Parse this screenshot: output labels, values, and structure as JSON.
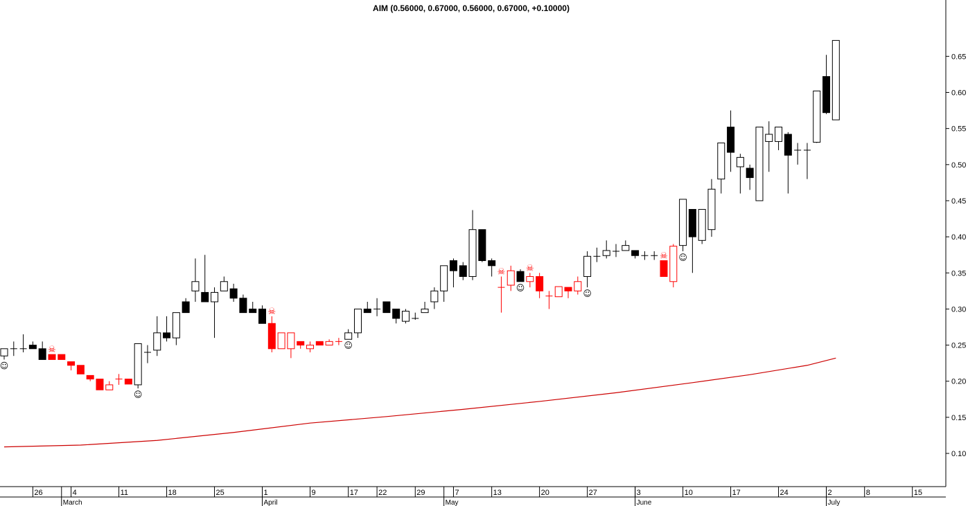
{
  "chart_data": {
    "type": "candlestick",
    "title": "AIM (0.56000, 0.67000, 0.56000, 0.67000, +0.10000)",
    "open": [
      0.235,
      0.245,
      0.245,
      0.25,
      0.245,
      0.237,
      0.237,
      0.227,
      0.222,
      0.208,
      0.203,
      0.188,
      0.203,
      0.203,
      0.195,
      0.24,
      0.243,
      0.267,
      0.26,
      0.31,
      0.325,
      0.323,
      0.31,
      0.325,
      0.328,
      0.315,
      0.3,
      0.3,
      0.28,
      0.245,
      0.245,
      0.255,
      0.245,
      0.255,
      0.25,
      0.255,
      0.258,
      0.267,
      0.3,
      0.3,
      0.31,
      0.3,
      0.283,
      0.287,
      0.295,
      0.31,
      0.325,
      0.367,
      0.36,
      0.345,
      0.41,
      0.367,
      0.33,
      0.333,
      0.352,
      0.338,
      0.345,
      0.318,
      0.317,
      0.33,
      0.325,
      0.345,
      0.373,
      0.374,
      0.38,
      0.381,
      0.381,
      0.374,
      0.374,
      0.367,
      0.338,
      0.388,
      0.438,
      0.395,
      0.41,
      0.48,
      0.552,
      0.497,
      0.495,
      0.45,
      0.532,
      0.532,
      0.542,
      0.52,
      0.52,
      0.531,
      0.622,
      0.562
    ],
    "high": [
      0.245,
      0.255,
      0.265,
      0.255,
      0.255,
      0.237,
      0.237,
      0.227,
      0.222,
      0.208,
      0.203,
      0.2,
      0.21,
      0.203,
      0.252,
      0.25,
      0.29,
      0.29,
      0.295,
      0.315,
      0.37,
      0.375,
      0.33,
      0.345,
      0.335,
      0.32,
      0.31,
      0.305,
      0.29,
      0.267,
      0.267,
      0.255,
      0.255,
      0.255,
      0.258,
      0.26,
      0.272,
      0.3,
      0.31,
      0.315,
      0.31,
      0.3,
      0.3,
      0.295,
      0.31,
      0.33,
      0.36,
      0.37,
      0.365,
      0.437,
      0.41,
      0.37,
      0.345,
      0.36,
      0.355,
      0.35,
      0.35,
      0.325,
      0.331,
      0.33,
      0.345,
      0.38,
      0.385,
      0.395,
      0.39,
      0.395,
      0.381,
      0.38,
      0.38,
      0.367,
      0.39,
      0.452,
      0.438,
      0.438,
      0.48,
      0.53,
      0.575,
      0.515,
      0.5,
      0.552,
      0.56,
      0.552,
      0.545,
      0.53,
      0.53,
      0.602,
      0.652,
      0.672
    ],
    "low": [
      0.23,
      0.235,
      0.24,
      0.245,
      0.23,
      0.23,
      0.23,
      0.215,
      0.21,
      0.2,
      0.188,
      0.188,
      0.195,
      0.196,
      0.19,
      0.225,
      0.235,
      0.255,
      0.25,
      0.295,
      0.31,
      0.31,
      0.26,
      0.325,
      0.31,
      0.295,
      0.295,
      0.28,
      0.24,
      0.245,
      0.232,
      0.245,
      0.24,
      0.25,
      0.25,
      0.25,
      0.258,
      0.26,
      0.295,
      0.29,
      0.295,
      0.28,
      0.28,
      0.285,
      0.295,
      0.3,
      0.31,
      0.33,
      0.34,
      0.34,
      0.365,
      0.345,
      0.295,
      0.325,
      0.338,
      0.33,
      0.315,
      0.3,
      0.317,
      0.315,
      0.32,
      0.33,
      0.365,
      0.37,
      0.372,
      0.381,
      0.37,
      0.368,
      0.368,
      0.345,
      0.33,
      0.38,
      0.35,
      0.39,
      0.4,
      0.46,
      0.49,
      0.46,
      0.465,
      0.45,
      0.49,
      0.52,
      0.46,
      0.5,
      0.48,
      0.53,
      0.57,
      0.562
    ],
    "close": [
      0.245,
      0.245,
      0.245,
      0.245,
      0.23,
      0.23,
      0.23,
      0.222,
      0.21,
      0.203,
      0.188,
      0.195,
      0.203,
      0.196,
      0.252,
      0.24,
      0.267,
      0.26,
      0.295,
      0.295,
      0.338,
      0.31,
      0.323,
      0.338,
      0.315,
      0.295,
      0.295,
      0.28,
      0.245,
      0.267,
      0.267,
      0.25,
      0.25,
      0.25,
      0.255,
      0.255,
      0.267,
      0.3,
      0.295,
      0.3,
      0.295,
      0.287,
      0.297,
      0.287,
      0.3,
      0.325,
      0.36,
      0.353,
      0.345,
      0.41,
      0.367,
      0.36,
      0.33,
      0.353,
      0.338,
      0.345,
      0.325,
      0.318,
      0.331,
      0.325,
      0.338,
      0.373,
      0.373,
      0.381,
      0.38,
      0.388,
      0.374,
      0.374,
      0.374,
      0.345,
      0.387,
      0.452,
      0.4,
      0.438,
      0.466,
      0.53,
      0.517,
      0.51,
      0.482,
      0.552,
      0.542,
      0.552,
      0.513,
      0.52,
      0.52,
      0.602,
      0.572,
      0.672
    ],
    "colors": [
      "black",
      "black",
      "black",
      "black",
      "black",
      "red",
      "red",
      "red",
      "red",
      "red",
      "red",
      "red",
      "red",
      "red",
      "black",
      "black",
      "black",
      "black",
      "black",
      "black",
      "black",
      "black",
      "black",
      "black",
      "black",
      "black",
      "black",
      "black",
      "red",
      "red",
      "red",
      "red",
      "red",
      "red",
      "red",
      "red",
      "black",
      "black",
      "black",
      "black",
      "black",
      "black",
      "black",
      "black",
      "black",
      "black",
      "black",
      "black",
      "black",
      "black",
      "black",
      "black",
      "red",
      "red",
      "black",
      "red",
      "red",
      "red",
      "red",
      "red",
      "red",
      "black",
      "black",
      "black",
      "black",
      "black",
      "black",
      "black",
      "black",
      "red",
      "red",
      "black",
      "black",
      "black",
      "black",
      "black",
      "black",
      "black",
      "black",
      "black",
      "black",
      "black",
      "black",
      "black",
      "black",
      "black",
      "black",
      "black"
    ],
    "moving_average": {
      "color": "#cc0000",
      "x": [
        0,
        8,
        16,
        24,
        32,
        40,
        48,
        56,
        64,
        72,
        78,
        84,
        87
      ],
      "values": [
        0.109,
        0.1115,
        0.118,
        0.129,
        0.142,
        0.151,
        0.161,
        0.172,
        0.184,
        0.198,
        0.209,
        0.222,
        0.232
      ]
    },
    "signals": [
      {
        "index": 5,
        "symbol": "☠"
      },
      {
        "index": 28,
        "symbol": "☠"
      },
      {
        "index": 52,
        "symbol": "☠"
      },
      {
        "index": 55,
        "symbol": "☠"
      },
      {
        "index": 69,
        "symbol": "☠"
      },
      {
        "index": 0,
        "symbol": "☺"
      },
      {
        "index": 14,
        "symbol": "☺"
      },
      {
        "index": 36,
        "symbol": "☺"
      },
      {
        "index": 54,
        "symbol": "☺"
      },
      {
        "index": 61,
        "symbol": "☺"
      },
      {
        "index": 71,
        "symbol": "☺"
      }
    ],
    "xlim": [
      -0.435,
      98.5
    ],
    "ylim": [
      0.054,
      0.728
    ],
    "xticks": [
      {
        "value": 3,
        "label": "26"
      },
      {
        "value": 7,
        "label": "4"
      },
      {
        "value": 12,
        "label": "11"
      },
      {
        "value": 17,
        "label": "18"
      },
      {
        "value": 22,
        "label": "25"
      },
      {
        "value": 27,
        "label": "1"
      },
      {
        "value": 32,
        "label": "9"
      },
      {
        "value": 36,
        "label": "17"
      },
      {
        "value": 39,
        "label": "22"
      },
      {
        "value": 43,
        "label": "29"
      },
      {
        "value": 47,
        "label": "7"
      },
      {
        "value": 51,
        "label": "13"
      },
      {
        "value": 56,
        "label": "20"
      },
      {
        "value": 61,
        "label": "27"
      },
      {
        "value": 66,
        "label": "3"
      },
      {
        "value": 71,
        "label": "10"
      },
      {
        "value": 76,
        "label": "17"
      },
      {
        "value": 81,
        "label": "24"
      },
      {
        "value": 86,
        "label": "2"
      },
      {
        "value": 90,
        "label": "8"
      },
      {
        "value": 95,
        "label": "15"
      }
    ],
    "months": [
      {
        "value": 6,
        "label": "March"
      },
      {
        "value": 27,
        "label": "April"
      },
      {
        "value": 46,
        "label": "May"
      },
      {
        "value": 66,
        "label": "June"
      },
      {
        "value": 86,
        "label": "July"
      }
    ],
    "yticks": [
      {
        "value": 0.1,
        "label": "0.10"
      },
      {
        "value": 0.15,
        "label": "0.15"
      },
      {
        "value": 0.2,
        "label": "0.20"
      },
      {
        "value": 0.25,
        "label": "0.25"
      },
      {
        "value": 0.3,
        "label": "0.30"
      },
      {
        "value": 0.35,
        "label": "0.35"
      },
      {
        "value": 0.4,
        "label": "0.40"
      },
      {
        "value": 0.45,
        "label": "0.45"
      },
      {
        "value": 0.5,
        "label": "0.50"
      },
      {
        "value": 0.55,
        "label": "0.55"
      },
      {
        "value": 0.6,
        "label": "0.60"
      },
      {
        "value": 0.65,
        "label": "0.65"
      }
    ]
  }
}
